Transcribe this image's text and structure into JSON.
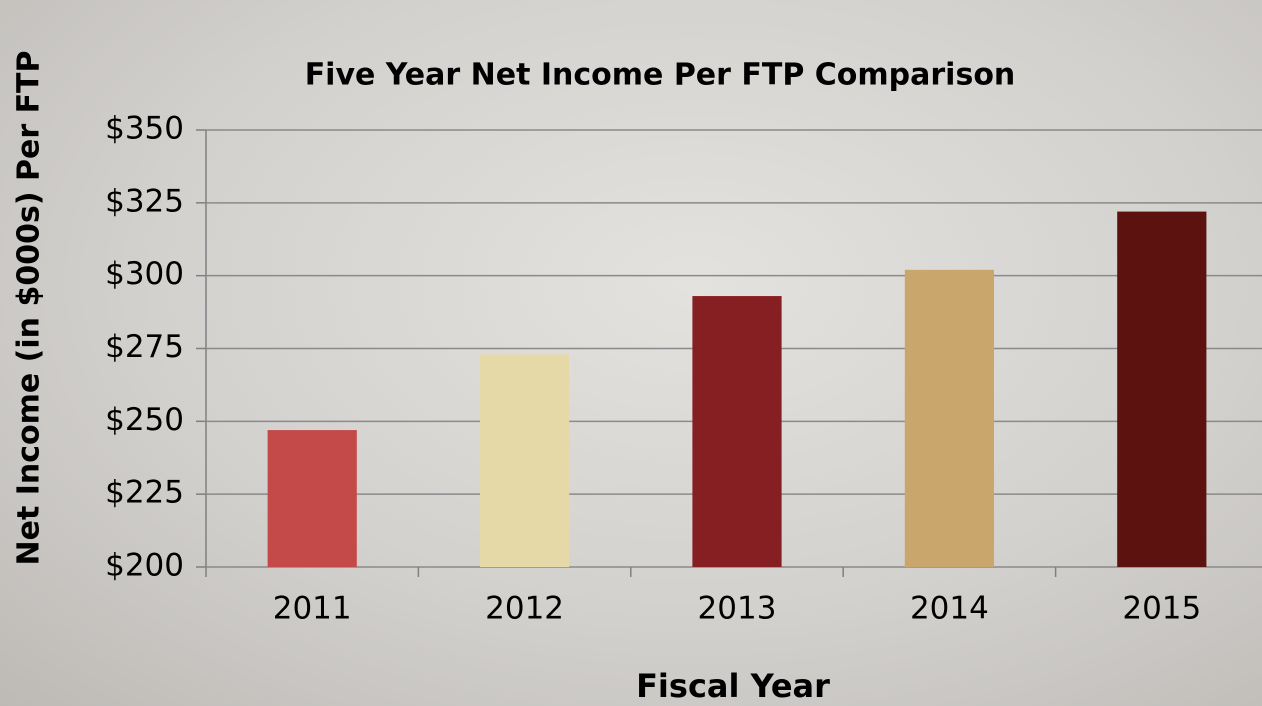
{
  "chart_data": {
    "type": "bar",
    "title": "Five Year  Net Income Per FTP Comparison",
    "x_label": "Fiscal Year",
    "y_label": "Net Income  (in $000s) Per FTP",
    "categories": [
      "2011",
      "2012",
      "2013",
      "2014",
      "2015"
    ],
    "values": [
      247,
      273,
      293,
      302,
      322
    ],
    "colors": [
      "#c44a4a",
      "#e6d9a8",
      "#851f22",
      "#c9a66b",
      "#5c120e"
    ],
    "ylim": [
      200,
      350
    ],
    "yticks": [
      {
        "value": 200,
        "label": "$200"
      },
      {
        "value": 225,
        "label": "$225"
      },
      {
        "value": 250,
        "label": "$250"
      },
      {
        "value": 275,
        "label": "$275"
      },
      {
        "value": 300,
        "label": "$300"
      },
      {
        "value": 325,
        "label": "$325"
      },
      {
        "value": 350,
        "label": "$350"
      }
    ],
    "grid": true
  }
}
